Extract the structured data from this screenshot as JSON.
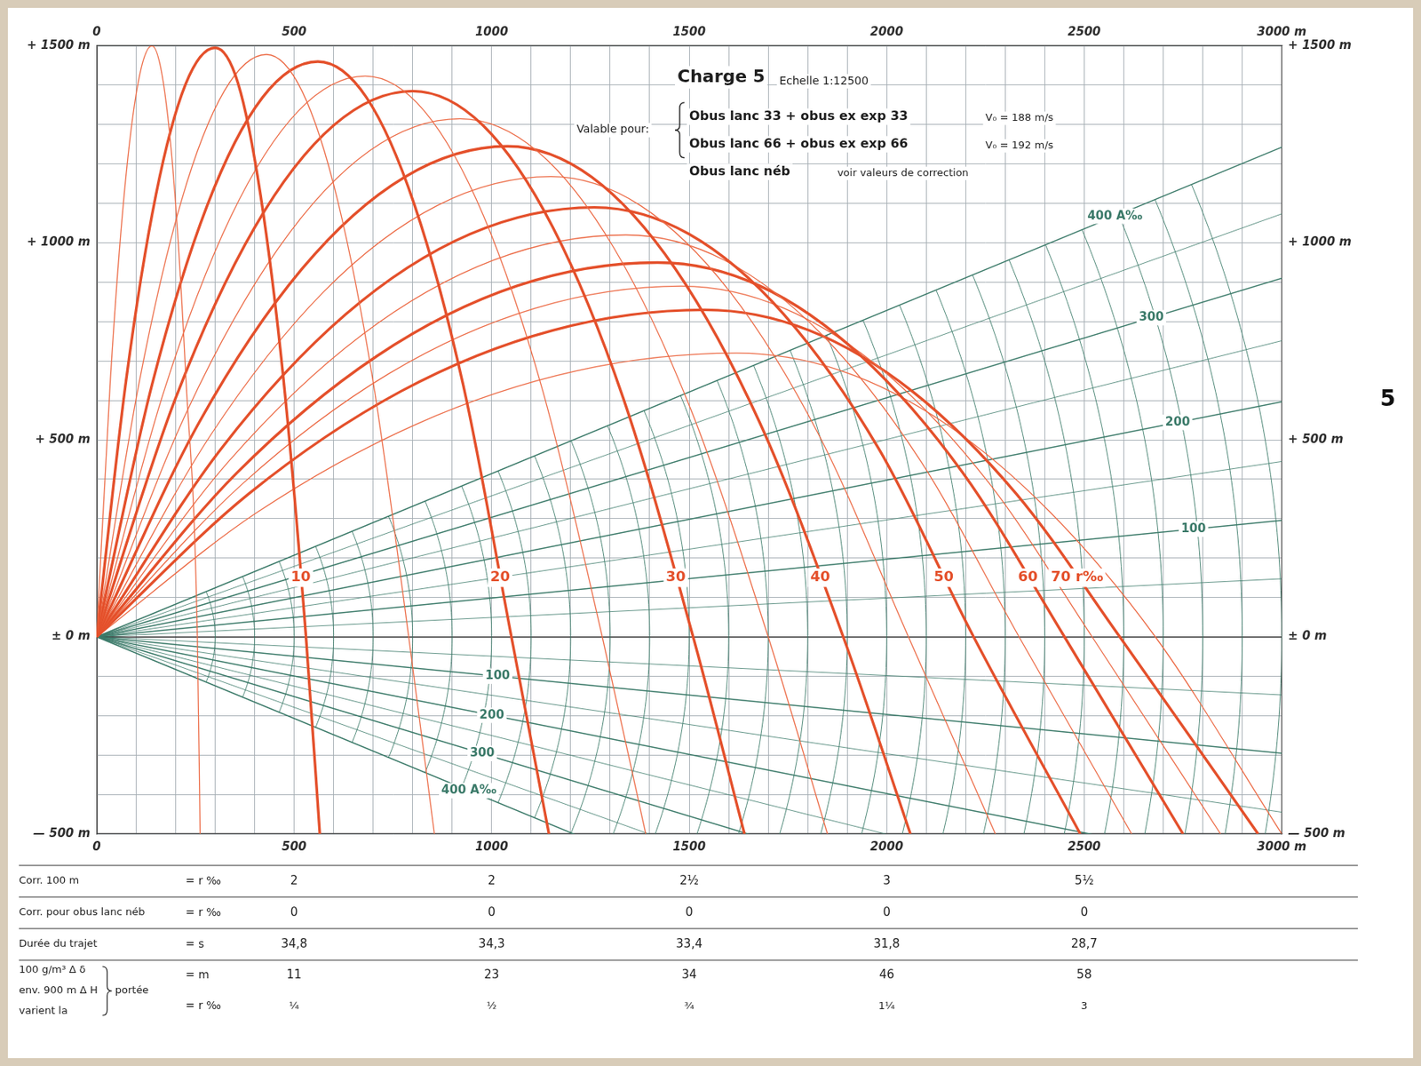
{
  "chart_data": {
    "type": "line",
    "title": "Charge 5",
    "subtitle": "Echelle 1:12500",
    "validity": {
      "intro": "Valable pour:",
      "lines": [
        {
          "text": "Obus lanc 33 + obus ex exp 33",
          "v0": "V₀ = 188 m/s"
        },
        {
          "text": "Obus lanc 66 + obus ex exp 66",
          "v0": "V₀ = 192 m/s"
        },
        {
          "text": "Obus lanc néb",
          "note": "voir valeurs de correction"
        }
      ]
    },
    "tab": "5",
    "xlim": [
      0,
      3000
    ],
    "ylim": [
      -500,
      1500
    ],
    "xticks": [
      0,
      500,
      1000,
      1500,
      2000,
      2500,
      {
        "value": 3000,
        "label": "3000 m"
      }
    ],
    "yticks": [
      {
        "value": -500,
        "label": "— 500 m"
      },
      {
        "value": 0,
        "label": "± 0 m"
      },
      {
        "value": 500,
        "label": "+ 500 m"
      },
      {
        "value": 1000,
        "label": "+ 1000 m"
      },
      {
        "value": 1500,
        "label": "+ 1500 m"
      }
    ],
    "grid": true,
    "x_grid_lines": [
      0,
      100,
      200,
      300,
      400,
      500,
      600,
      700,
      800,
      900,
      1000,
      1100,
      1200,
      1300,
      1400,
      1500,
      1600,
      1700,
      1800,
      1900,
      2000,
      2100,
      2200,
      2300,
      2400,
      2500,
      2600,
      2700,
      2800,
      2900,
      3000
    ],
    "y_grid_lines": [
      -500,
      -400,
      -300,
      -200,
      -100,
      0,
      100,
      200,
      300,
      400,
      500,
      600,
      700,
      800,
      900,
      1000,
      1100,
      1200,
      1300,
      1400,
      1500
    ],
    "site_angles": {
      "color": "#3b7a69",
      "lines": [
        {
          "value": 400,
          "label": "400 A‰"
        },
        {
          "value": 300,
          "label": "300"
        },
        {
          "value": 200,
          "label": "200"
        },
        {
          "value": 100,
          "label": "100"
        },
        {
          "value": -100,
          "label": "100"
        },
        {
          "value": -200,
          "label": "200"
        },
        {
          "value": -300,
          "label": "300"
        },
        {
          "value": -400,
          "label": "400 A‰"
        }
      ],
      "minor": [
        350,
        250,
        150,
        50,
        -50,
        -150,
        -250,
        -350
      ]
    },
    "range_circles": {
      "color": "#3b7a69",
      "radii": [
        300,
        400,
        500,
        600,
        700,
        800,
        900,
        1000,
        1100,
        1200,
        1300,
        1400,
        1500,
        1600,
        1700,
        1800,
        1900,
        2000,
        2100,
        2200,
        2300,
        2400,
        2500,
        2600,
        2700,
        2800,
        2900,
        3000
      ]
    },
    "series": [
      {
        "x": [
          0,
          35,
          70,
          105,
          140,
          169,
          198,
          226,
          255,
          262
        ],
        "values": [
          0,
          656,
          1125,
          1406,
          1500,
          1406,
          1125,
          656,
          0,
          -500
        ],
        "color": "#ec6b46",
        "line_style": "thin"
      },
      {
        "name": "10",
        "x": [
          0,
          75,
          150,
          225,
          300,
          358,
          415,
          473,
          530,
          565
        ],
        "values": [
          0,
          654,
          1121,
          1402,
          1495,
          1405,
          1121,
          654,
          0,
          -500
        ],
        "color": "#e4502b",
        "line_style": "thick"
      },
      {
        "x": [
          0,
          108,
          215,
          323,
          430,
          520,
          610,
          700,
          790,
          855
        ],
        "values": [
          0,
          647,
          1108,
          1385,
          1478,
          1385,
          1108,
          647,
          0,
          -500
        ],
        "color": "#ec6b46",
        "line_style": "thin"
      },
      {
        "name": "20",
        "x": [
          0,
          140,
          280,
          420,
          560,
          683,
          805,
          928,
          1050,
          1145
        ],
        "values": [
          0,
          639,
          1095,
          1369,
          1460,
          1369,
          1095,
          639,
          0,
          -500
        ],
        "color": "#e4502b",
        "line_style": "thick"
      },
      {
        "x": [
          0,
          170,
          340,
          510,
          680,
          830,
          980,
          1130,
          1280,
          1390
        ],
        "values": [
          0,
          622,
          1067,
          1334,
          1423,
          1334,
          1067,
          622,
          0,
          -500
        ],
        "color": "#ec6b46",
        "line_style": "thin"
      },
      {
        "name": "30",
        "x": [
          0,
          200,
          400,
          600,
          800,
          978,
          1155,
          1333,
          1510,
          1640
        ],
        "values": [
          0,
          606,
          1039,
          1298,
          1385,
          1298,
          1039,
          606,
          0,
          -500
        ],
        "color": "#e4502b",
        "line_style": "thick"
      },
      {
        "x": [
          0,
          230,
          460,
          690,
          920,
          1115,
          1310,
          1505,
          1700,
          1850
        ],
        "values": [
          0,
          575,
          986,
          1233,
          1315,
          1233,
          986,
          575,
          0,
          -500
        ],
        "color": "#ec6b46",
        "line_style": "thin"
      },
      {
        "name": "40",
        "x": [
          0,
          260,
          520,
          780,
          1040,
          1253,
          1465,
          1678,
          1890,
          2060
        ],
        "values": [
          0,
          545,
          934,
          1167,
          1245,
          1167,
          934,
          545,
          0,
          -500
        ],
        "color": "#e4502b",
        "line_style": "thick"
      },
      {
        "x": [
          0,
          288,
          575,
          863,
          1150,
          1376,
          1603,
          1829,
          2055,
          2275
        ],
        "values": [
          0,
          511,
          876,
          1095,
          1168,
          1095,
          876,
          511,
          0,
          -500
        ],
        "color": "#ec6b46",
        "line_style": "thin"
      },
      {
        "name": "50",
        "x": [
          0,
          315,
          630,
          945,
          1260,
          1500,
          1740,
          1980,
          2220,
          2490
        ],
        "values": [
          0,
          477,
          818,
          1022,
          1090,
          1022,
          818,
          477,
          0,
          -500
        ],
        "color": "#e4502b",
        "line_style": "thick"
      },
      {
        "x": [
          0,
          335,
          670,
          1005,
          1340,
          1589,
          1838,
          2086,
          2335,
          2620
        ],
        "values": [
          0,
          446,
          765,
          956,
          1020,
          956,
          765,
          446,
          0,
          -500
        ],
        "color": "#ec6b46",
        "line_style": "thin"
      },
      {
        "name": "60",
        "x": [
          0,
          355,
          710,
          1065,
          1420,
          1678,
          1935,
          2193,
          2450,
          2750
        ],
        "values": [
          0,
          416,
          713,
          891,
          950,
          891,
          713,
          416,
          0,
          -500
        ],
        "color": "#e4502b",
        "line_style": "thick"
      },
      {
        "x": [
          0,
          370,
          740,
          1110,
          1480,
          1740,
          2000,
          2260,
          2520,
          2845
        ],
        "values": [
          0,
          389,
          668,
          834,
          890,
          834,
          668,
          389,
          0,
          -500
        ],
        "color": "#ec6b46",
        "line_style": "thin"
      },
      {
        "name": "70 r‰",
        "x": [
          0,
          385,
          770,
          1155,
          1540,
          1803,
          2065,
          2328,
          2590,
          2940
        ],
        "values": [
          0,
          363,
          623,
          778,
          830,
          778,
          623,
          363,
          0,
          -500
        ],
        "color": "#e4502b",
        "line_style": "thick"
      },
      {
        "x": [
          0,
          405,
          810,
          1215,
          1620,
          1885,
          2150,
          2415,
          2680,
          3000
        ],
        "values": [
          0,
          315,
          540,
          675,
          720,
          675,
          540,
          315,
          0,
          -500
        ],
        "color": "#ec6b46",
        "line_style": "thin"
      }
    ],
    "table": {
      "columns": [
        500,
        1000,
        1500,
        2000,
        2500
      ],
      "rows": [
        {
          "label": [
            "Corr. 100 m"
          ],
          "units": [
            "= r ‰"
          ],
          "values": [
            [
              "2",
              "2",
              "2½",
              "3",
              "5½"
            ]
          ]
        },
        {
          "label": [
            "Corr. pour obus lanc néb"
          ],
          "units": [
            "= r ‰"
          ],
          "values": [
            [
              "0",
              "0",
              "0",
              "0",
              "0"
            ]
          ]
        },
        {
          "label": [
            "Durée du trajet"
          ],
          "units": [
            "= s"
          ],
          "values": [
            [
              "34,8",
              "34,3",
              "33,4",
              "31,8",
              "28,7"
            ]
          ]
        },
        {
          "label": [
            "100 g/m³ Δ δ",
            "env. 900 m Δ H",
            "varient la"
          ],
          "bracket": "portée",
          "units": [
            "= m",
            "= r ‰"
          ],
          "values": [
            [
              "11",
              "23",
              "34",
              "46",
              "58"
            ],
            [
              "¼",
              "½",
              "¾",
              "1¼",
              "3"
            ]
          ]
        }
      ]
    }
  }
}
